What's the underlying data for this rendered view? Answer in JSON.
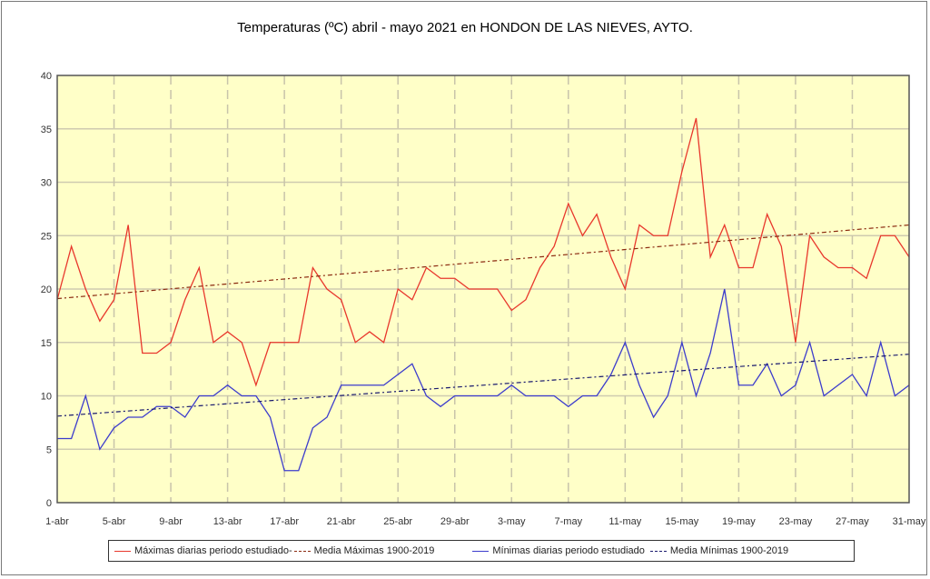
{
  "chart_data": {
    "type": "line",
    "title": "Temperaturas (ºC) abril - mayo 2021 en HONDON DE LAS NIEVES, AYTO.",
    "xlabel": "",
    "ylabel": "",
    "ylim": [
      0,
      40
    ],
    "yticks": [
      0,
      5,
      10,
      15,
      20,
      25,
      30,
      35,
      40
    ],
    "grid": true,
    "legend_position": "bottom",
    "xtick_labels": [
      "1-abr",
      "5-abr",
      "9-abr",
      "13-abr",
      "17-abr",
      "21-abr",
      "25-abr",
      "29-abr",
      "3-may",
      "7-may",
      "11-may",
      "15-may",
      "19-may",
      "23-may",
      "27-may",
      "31-may"
    ],
    "xtick_every_days": 4,
    "days": 61,
    "colors": {
      "plot_background": "#ffffc8",
      "max_series": "#e8372c",
      "max_trend": "#8b2a10",
      "min_series": "#3c3ccc",
      "min_trend": "#1a1a6e"
    },
    "series": [
      {
        "name": "Máximas diarias periodo estudiado-",
        "style": "solid",
        "values": [
          19,
          24,
          20,
          17,
          19,
          26,
          14,
          14,
          15,
          19,
          22,
          15,
          16,
          15,
          11,
          15,
          15,
          15,
          22,
          20,
          19,
          15,
          16,
          15,
          20,
          19,
          22,
          21,
          21,
          20,
          20,
          20,
          18,
          19,
          22,
          24,
          28,
          25,
          27,
          23,
          20,
          26,
          25,
          25,
          31,
          36,
          23,
          26,
          22,
          22,
          27,
          24,
          15,
          25,
          23,
          22,
          22,
          21,
          25,
          25,
          23
        ]
      },
      {
        "name": "Media Máximas 1900-2019",
        "style": "dashed",
        "values_linear": [
          19.1,
          26.0
        ]
      },
      {
        "name": "Mínimas diarias periodo estudiado",
        "style": "solid",
        "values": [
          6,
          6,
          10,
          5,
          7,
          8,
          8,
          9,
          9,
          8,
          10,
          10,
          11,
          10,
          10,
          8,
          3,
          3,
          7,
          8,
          11,
          11,
          11,
          11,
          12,
          13,
          10,
          9,
          10,
          10,
          10,
          10,
          11,
          10,
          10,
          10,
          9,
          10,
          10,
          12,
          15,
          11,
          8,
          10,
          15,
          10,
          14,
          20,
          11,
          11,
          13,
          10,
          11,
          15,
          10,
          11,
          12,
          10,
          15,
          10,
          11
        ]
      },
      {
        "name": "Media Mínimas 1900-2019",
        "style": "dashed",
        "values_linear": [
          8.1,
          13.9
        ]
      }
    ]
  }
}
